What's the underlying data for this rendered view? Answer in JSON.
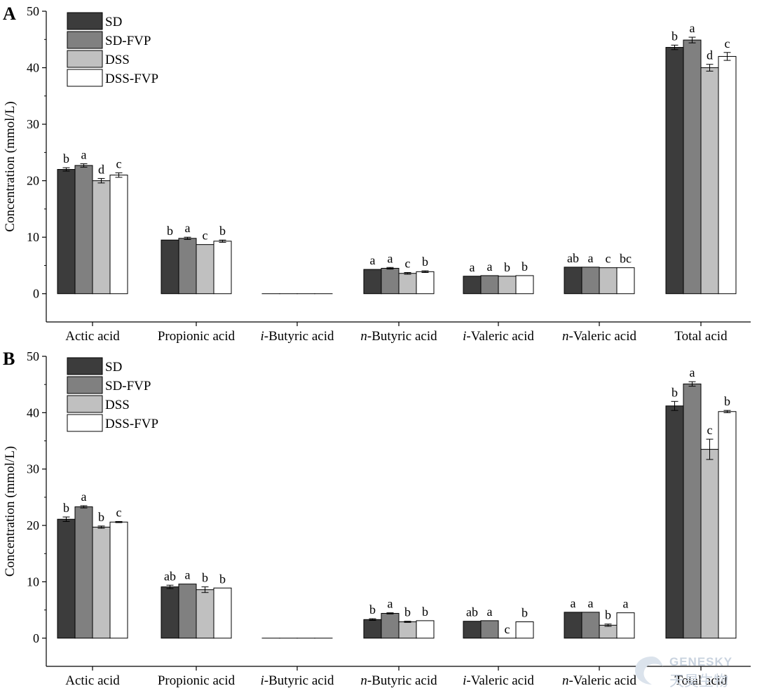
{
  "chart_data": [
    {
      "panel_label": "A",
      "type": "bar",
      "ylabel": "Concentration (mmol/L)",
      "ylim": [
        -5,
        50
      ],
      "yticks": [
        0,
        10,
        20,
        30,
        40,
        50
      ],
      "categories": [
        {
          "prefix": "",
          "name": "Actic acid"
        },
        {
          "prefix": "",
          "name": "Propionic acid"
        },
        {
          "prefix": "i",
          "name": "-Butyric acid"
        },
        {
          "prefix": "n",
          "name": "-Butyric acid"
        },
        {
          "prefix": "i",
          "name": "-Valeric acid"
        },
        {
          "prefix": "n",
          "name": "-Valeric acid"
        },
        {
          "prefix": "",
          "name": "Total acid"
        }
      ],
      "legend_position": "top-left",
      "series": [
        {
          "name": "SD",
          "color": "#3c3c3c",
          "values": [
            22.0,
            9.5,
            0.0,
            4.3,
            3.1,
            4.7,
            43.6
          ],
          "errors": [
            0.3,
            0.0,
            0.0,
            0.0,
            0.0,
            0.0,
            0.4
          ],
          "labels": [
            "b",
            "b",
            "",
            "a",
            "a",
            "ab",
            "b"
          ]
        },
        {
          "name": "SD-FVP",
          "color": "#808080",
          "values": [
            22.7,
            9.8,
            0.0,
            4.5,
            3.2,
            4.7,
            44.9
          ],
          "errors": [
            0.3,
            0.2,
            0.0,
            0.15,
            0.0,
            0.0,
            0.5
          ],
          "labels": [
            "a",
            "a",
            "",
            "a",
            "a",
            "a",
            "a"
          ]
        },
        {
          "name": "DSS",
          "color": "#c0c0c0",
          "values": [
            20.0,
            8.7,
            0.0,
            3.6,
            3.1,
            4.6,
            40.0
          ],
          "errors": [
            0.4,
            0.0,
            0.0,
            0.15,
            0.0,
            0.0,
            0.6
          ],
          "labels": [
            "d",
            "c",
            "",
            "c",
            "b",
            "c",
            "d"
          ]
        },
        {
          "name": "DSS-FVP",
          "color": "#ffffff",
          "values": [
            21.0,
            9.3,
            0.0,
            3.9,
            3.2,
            4.6,
            42.0
          ],
          "errors": [
            0.4,
            0.2,
            0.0,
            0.15,
            0.0,
            0.0,
            0.7
          ],
          "labels": [
            "c",
            "b",
            "",
            "b",
            "b",
            "bc",
            "c"
          ]
        }
      ]
    },
    {
      "panel_label": "B",
      "type": "bar",
      "ylabel": "Concentration (mmol/L)",
      "ylim": [
        -5,
        50
      ],
      "yticks": [
        0,
        10,
        20,
        30,
        40,
        50
      ],
      "categories": [
        {
          "prefix": "",
          "name": "Actic acid"
        },
        {
          "prefix": "",
          "name": "Propionic acid"
        },
        {
          "prefix": "i",
          "name": "-Butyric acid"
        },
        {
          "prefix": "n",
          "name": "-Butyric acid"
        },
        {
          "prefix": "i",
          "name": "-Valeric acid"
        },
        {
          "prefix": "n",
          "name": "-Valeric acid"
        },
        {
          "prefix": "",
          "name": "Total acid"
        }
      ],
      "legend_position": "top-left",
      "series": [
        {
          "name": "SD",
          "color": "#3c3c3c",
          "values": [
            21.1,
            9.1,
            0.0,
            3.3,
            3.0,
            4.6,
            41.2
          ],
          "errors": [
            0.4,
            0.3,
            0.0,
            0.15,
            0.0,
            0.0,
            0.8
          ],
          "labels": [
            "b",
            "ab",
            "",
            "b",
            "ab",
            "a",
            "b"
          ]
        },
        {
          "name": "SD-FVP",
          "color": "#808080",
          "values": [
            23.3,
            9.6,
            0.0,
            4.4,
            3.1,
            4.6,
            45.1
          ],
          "errors": [
            0.2,
            0.0,
            0.0,
            0.1,
            0.0,
            0.0,
            0.4
          ],
          "labels": [
            "a",
            "a",
            "",
            "a",
            "a",
            "a",
            "a"
          ]
        },
        {
          "name": "DSS",
          "color": "#c0c0c0",
          "values": [
            19.7,
            8.6,
            0.0,
            2.9,
            0.0,
            2.3,
            33.5
          ],
          "errors": [
            0.2,
            0.5,
            0.0,
            0.1,
            0.0,
            0.2,
            1.8
          ],
          "labels": [
            "b",
            "b",
            "",
            "b",
            "c",
            "b",
            "c"
          ]
        },
        {
          "name": "DSS-FVP",
          "color": "#ffffff",
          "values": [
            20.6,
            8.9,
            0.0,
            3.1,
            2.9,
            4.5,
            40.2
          ],
          "errors": [
            0.1,
            0.0,
            0.0,
            0.0,
            0.0,
            0.0,
            0.2
          ],
          "labels": [
            "c",
            "b",
            "",
            "b",
            "b",
            "a",
            "b"
          ]
        }
      ]
    }
  ],
  "watermark": {
    "line1": "GENESKY",
    "line2": "天昊生物"
  }
}
